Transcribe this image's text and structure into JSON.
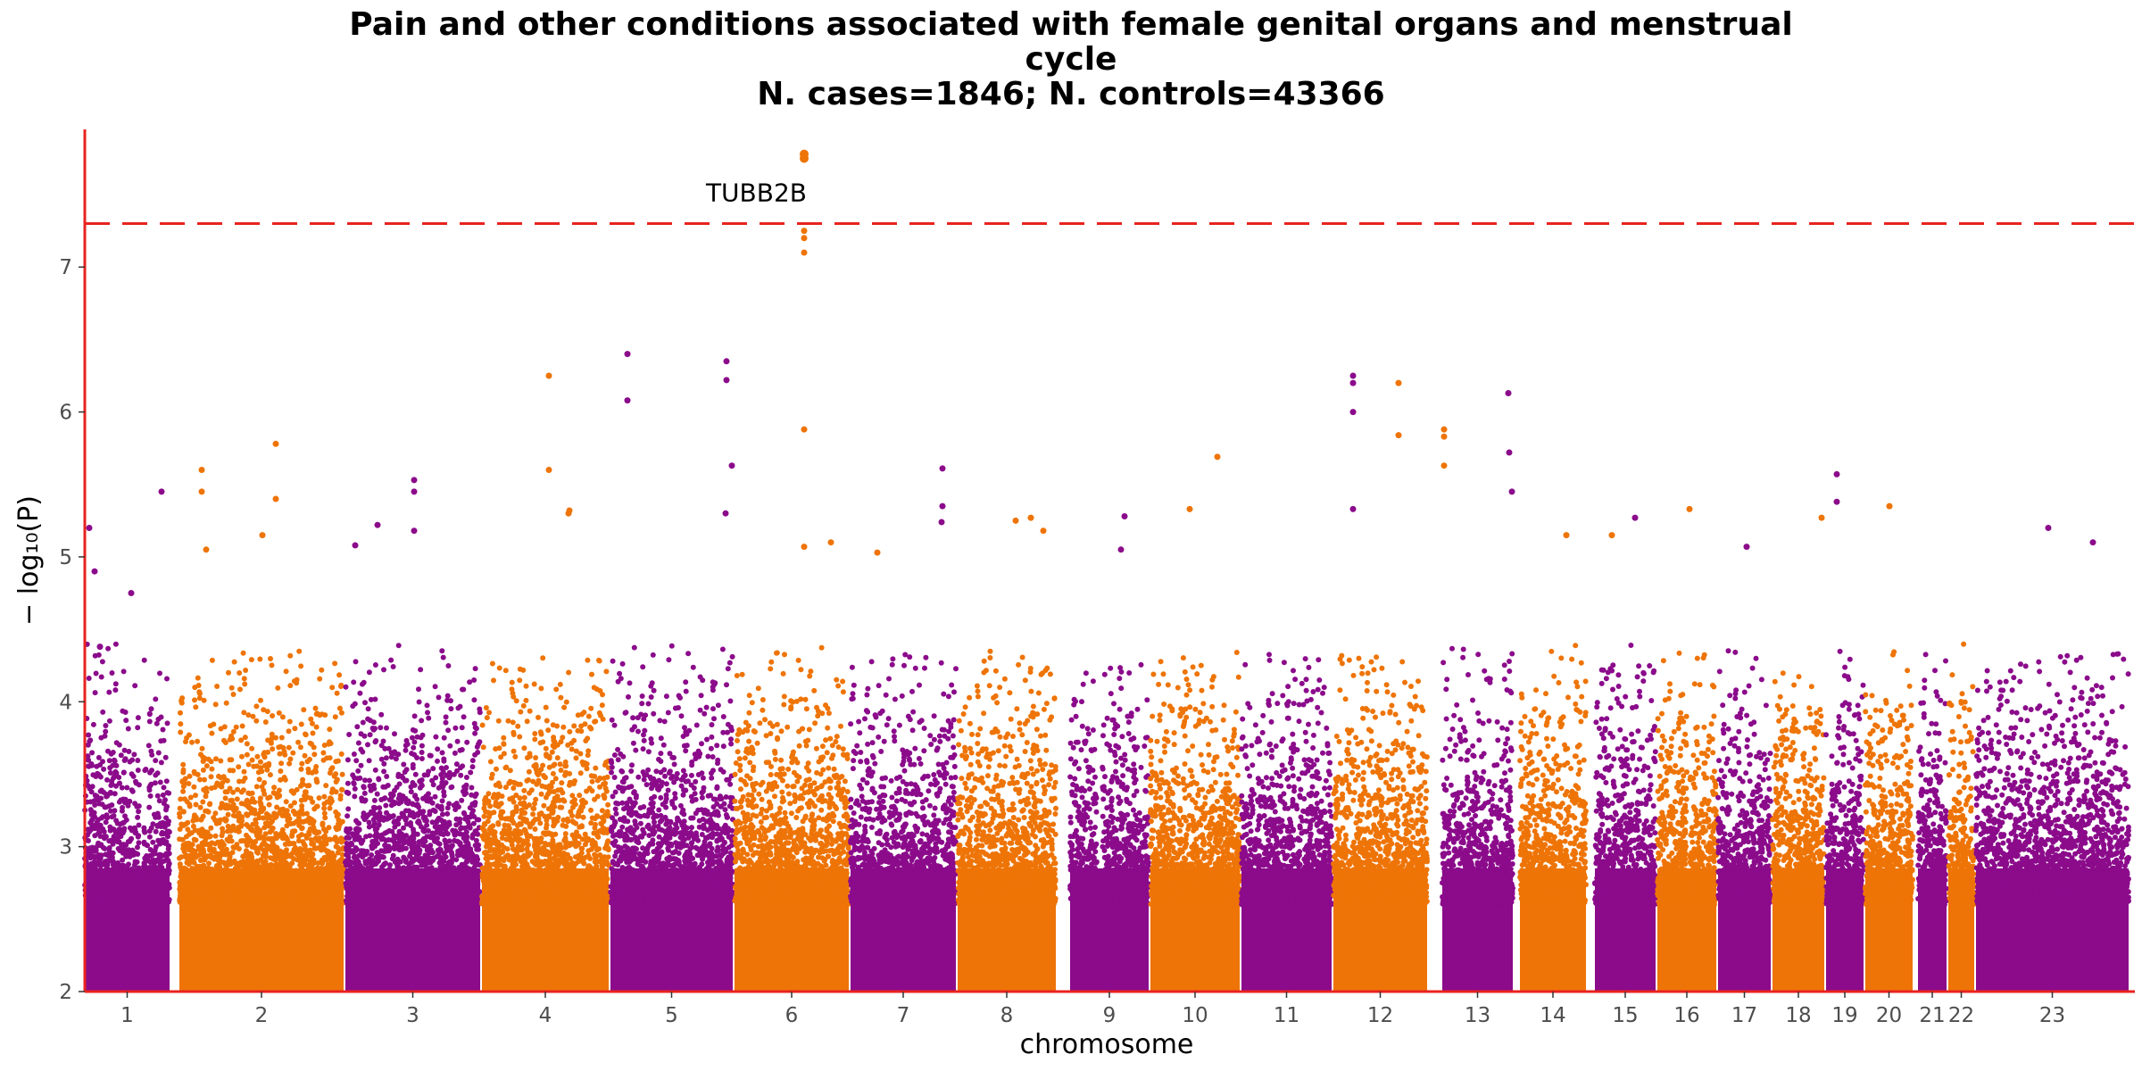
{
  "chart_data": {
    "type": "scatter",
    "subtype": "manhattan",
    "title": "Pain and other conditions associated with female genital organs and menstrual cycle",
    "title_lines": [
      "Pain and other conditions associated with female genital organs and menstrual",
      "cycle",
      "N. cases=1846; N. controls=43366"
    ],
    "xlabel": "chromosome",
    "ylabel": "− log₁₀(P)",
    "ylim": [
      2,
      7.95
    ],
    "y_ticks": [
      2,
      3,
      4,
      5,
      6,
      7
    ],
    "grid": false,
    "threshold": {
      "y": 7.3,
      "color": "#e8231f",
      "style": "dashed"
    },
    "colors": {
      "odd": "#8b0b8b",
      "even": "#ee7407",
      "axis": "#e8231f"
    },
    "chromosomes": [
      {
        "label": "1",
        "xmin": 0,
        "xmax": 95,
        "gaps": [
          [
            61,
            66
          ]
        ]
      },
      {
        "label": "2",
        "xmin": 106,
        "xmax": 290
      },
      {
        "label": "3",
        "xmin": 292,
        "xmax": 443
      },
      {
        "label": "4",
        "xmin": 445,
        "xmax": 587
      },
      {
        "label": "5",
        "xmin": 589,
        "xmax": 726
      },
      {
        "label": "6",
        "xmin": 728,
        "xmax": 856
      },
      {
        "label": "7",
        "xmin": 858,
        "xmax": 976
      },
      {
        "label": "8",
        "xmin": 978,
        "xmax": 1088
      },
      {
        "label": "9",
        "xmin": 1104,
        "xmax": 1192,
        "gaps": [
          [
            1134,
            1140
          ]
        ]
      },
      {
        "label": "10",
        "xmin": 1194,
        "xmax": 1294
      },
      {
        "label": "11",
        "xmin": 1296,
        "xmax": 1397
      },
      {
        "label": "12",
        "xmin": 1399,
        "xmax": 1504
      },
      {
        "label": "13",
        "xmin": 1521,
        "xmax": 1600
      },
      {
        "label": "14",
        "xmin": 1608,
        "xmax": 1682
      },
      {
        "label": "15",
        "xmin": 1692,
        "xmax": 1760
      },
      {
        "label": "16",
        "xmin": 1762,
        "xmax": 1828,
        "gaps": [
          [
            1795,
            1798
          ]
        ]
      },
      {
        "label": "17",
        "xmin": 1830,
        "xmax": 1889
      },
      {
        "label": "18",
        "xmin": 1891,
        "xmax": 1949
      },
      {
        "label": "19",
        "xmin": 1951,
        "xmax": 1993
      },
      {
        "label": "20",
        "xmin": 1995,
        "xmax": 2048
      },
      {
        "label": "21",
        "xmin": 2054,
        "xmax": 2086
      },
      {
        "label": "22",
        "xmin": 2088,
        "xmax": 2117
      },
      {
        "label": "23",
        "xmin": 2119,
        "xmax": 2290
      }
    ],
    "peaks": [
      {
        "chr": "1",
        "x": 5,
        "y": 5.2
      },
      {
        "chr": "1",
        "x": 11,
        "y": 4.9
      },
      {
        "chr": "1",
        "x": 86,
        "y": 5.45
      },
      {
        "chr": "1",
        "x": 52,
        "y": 4.75
      },
      {
        "chr": "1",
        "x": 17,
        "y": 4.38
      },
      {
        "chr": "2",
        "x": 131,
        "y": 5.6
      },
      {
        "chr": "2",
        "x": 131,
        "y": 5.45
      },
      {
        "chr": "2",
        "x": 214,
        "y": 5.78
      },
      {
        "chr": "2",
        "x": 214,
        "y": 5.4
      },
      {
        "chr": "2",
        "x": 199,
        "y": 5.15
      },
      {
        "chr": "2",
        "x": 136,
        "y": 5.05
      },
      {
        "chr": "3",
        "x": 303,
        "y": 5.08
      },
      {
        "chr": "3",
        "x": 328,
        "y": 5.22
      },
      {
        "chr": "3",
        "x": 369,
        "y": 5.53
      },
      {
        "chr": "3",
        "x": 369,
        "y": 5.45
      },
      {
        "chr": "3",
        "x": 369,
        "y": 5.18
      },
      {
        "chr": "4",
        "x": 520,
        "y": 6.25
      },
      {
        "chr": "4",
        "x": 520,
        "y": 5.6
      },
      {
        "chr": "4",
        "x": 542,
        "y": 5.3
      },
      {
        "chr": "4",
        "x": 543,
        "y": 5.32
      },
      {
        "chr": "5",
        "x": 608,
        "y": 6.4
      },
      {
        "chr": "5",
        "x": 608,
        "y": 6.08
      },
      {
        "chr": "5",
        "x": 719,
        "y": 6.35
      },
      {
        "chr": "5",
        "x": 719,
        "y": 6.22
      },
      {
        "chr": "5",
        "x": 725,
        "y": 5.63
      },
      {
        "chr": "5",
        "x": 718,
        "y": 5.3
      },
      {
        "chr": "6",
        "x": 806,
        "y": 5.88
      },
      {
        "chr": "6",
        "x": 806,
        "y": 5.07
      },
      {
        "chr": "6",
        "x": 836,
        "y": 5.1
      },
      {
        "chr": "6",
        "x": 888,
        "y": 5.03
      },
      {
        "chr": "7",
        "x": 961,
        "y": 5.61
      },
      {
        "chr": "7",
        "x": 961,
        "y": 5.35
      },
      {
        "chr": "7",
        "x": 960,
        "y": 5.24
      },
      {
        "chr": "8",
        "x": 1060,
        "y": 5.27
      },
      {
        "chr": "8",
        "x": 1043,
        "y": 5.25
      },
      {
        "chr": "8",
        "x": 1074,
        "y": 5.18
      },
      {
        "chr": "9",
        "x": 1165,
        "y": 5.28
      },
      {
        "chr": "9",
        "x": 1161,
        "y": 5.05
      },
      {
        "chr": "10",
        "x": 1269,
        "y": 5.69
      },
      {
        "chr": "10",
        "x": 1238,
        "y": 5.33
      },
      {
        "chr": "11",
        "x": 1421,
        "y": 6.25
      },
      {
        "chr": "11",
        "x": 1421,
        "y": 6.2
      },
      {
        "chr": "11",
        "x": 1421,
        "y": 6.0
      },
      {
        "chr": "11",
        "x": 1421,
        "y": 5.33
      },
      {
        "chr": "12",
        "x": 1472,
        "y": 6.2
      },
      {
        "chr": "12",
        "x": 1472,
        "y": 5.84
      },
      {
        "chr": "12",
        "x": 1523,
        "y": 5.88
      },
      {
        "chr": "12",
        "x": 1523,
        "y": 5.83
      },
      {
        "chr": "12",
        "x": 1523,
        "y": 5.63
      },
      {
        "chr": "13",
        "x": 1595,
        "y": 6.13
      },
      {
        "chr": "13",
        "x": 1596,
        "y": 5.72
      },
      {
        "chr": "13",
        "x": 1599,
        "y": 5.45
      },
      {
        "chr": "14",
        "x": 1660,
        "y": 5.15
      },
      {
        "chr": "14",
        "x": 1711,
        "y": 5.15
      },
      {
        "chr": "15",
        "x": 1737,
        "y": 5.27
      },
      {
        "chr": "16",
        "x": 1798,
        "y": 5.33
      },
      {
        "chr": "17",
        "x": 1862,
        "y": 5.07
      },
      {
        "chr": "18",
        "x": 1946,
        "y": 5.27
      },
      {
        "chr": "19",
        "x": 1963,
        "y": 5.57
      },
      {
        "chr": "19",
        "x": 1963,
        "y": 5.38
      },
      {
        "chr": "20",
        "x": 2022,
        "y": 5.35
      },
      {
        "chr": "23",
        "x": 2200,
        "y": 5.2
      },
      {
        "chr": "23",
        "x": 2250,
        "y": 5.1
      }
    ],
    "highlight": {
      "chr": "6",
      "x": 806,
      "y_values": [
        7.78,
        7.75,
        7.25,
        7.2,
        7.1
      ]
    },
    "annotations": [
      {
        "text": "TUBB2B",
        "x": 806,
        "y": 7.73
      }
    ]
  }
}
